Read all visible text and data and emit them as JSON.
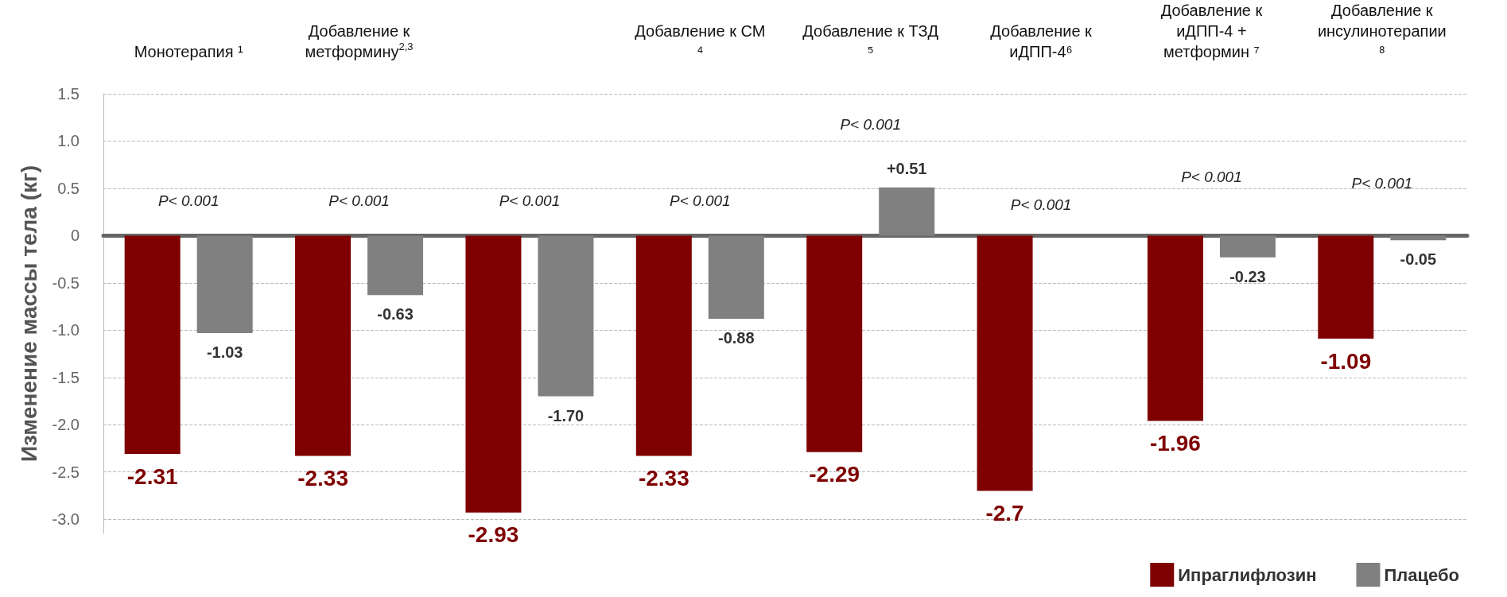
{
  "chart_data": {
    "type": "bar",
    "ylabel": "Изменение массы тела (кг)",
    "categories": [
      "Монотерапия ¹",
      "Добавление к метформину$^{2,3}$",
      null,
      "Добавление к СМ ⁴",
      "Добавление к ТЗД ⁵",
      "Добавление к иДПП-4⁶",
      "Добавление к иДПП-4 + метформин ⁷",
      "Добавление к инсулинотерапии ⁸"
    ],
    "series": [
      {
        "name": "Ипраглифлозин",
        "color": "#7f0000",
        "values": [
          -2.31,
          -2.33,
          -2.93,
          -2.33,
          -2.29,
          -2.7,
          -1.96,
          -1.09
        ],
        "value_labels": [
          "-2.31",
          "-2.33",
          "-2.93",
          "-2.33",
          "-2.29",
          "-2.7",
          "-1.96",
          "-1.09"
        ]
      },
      {
        "name": "Плацебо",
        "color": "#808080",
        "values": [
          -1.03,
          -0.63,
          -1.7,
          -0.88,
          0.51,
          null,
          -0.23,
          -0.05
        ],
        "value_labels": [
          "-1.03",
          "-0.63",
          "-1.70",
          "-0.88",
          "+0.51",
          null,
          "-0.23",
          "-0.05"
        ]
      }
    ],
    "ylim": [
      -3.15,
      1.5
    ],
    "yticks": [
      1.5,
      {
        "value": 1,
        "label": "1.0"
      },
      0.5,
      0,
      -0.5,
      {
        "value": -1,
        "label": "-1.0"
      },
      -1.5,
      {
        "value": -2,
        "label": "-2.0"
      },
      -2.5,
      {
        "value": -3,
        "label": "-3.0"
      }
    ],
    "grid": "y",
    "legend": "bottom right",
    "annotations": [
      "P< 0.001",
      "P< 0.001",
      "P< 0.001",
      "P< 0.001",
      "P< 0.001",
      "P< 0.001",
      "P< 0.001",
      "P< 0.001"
    ]
  }
}
